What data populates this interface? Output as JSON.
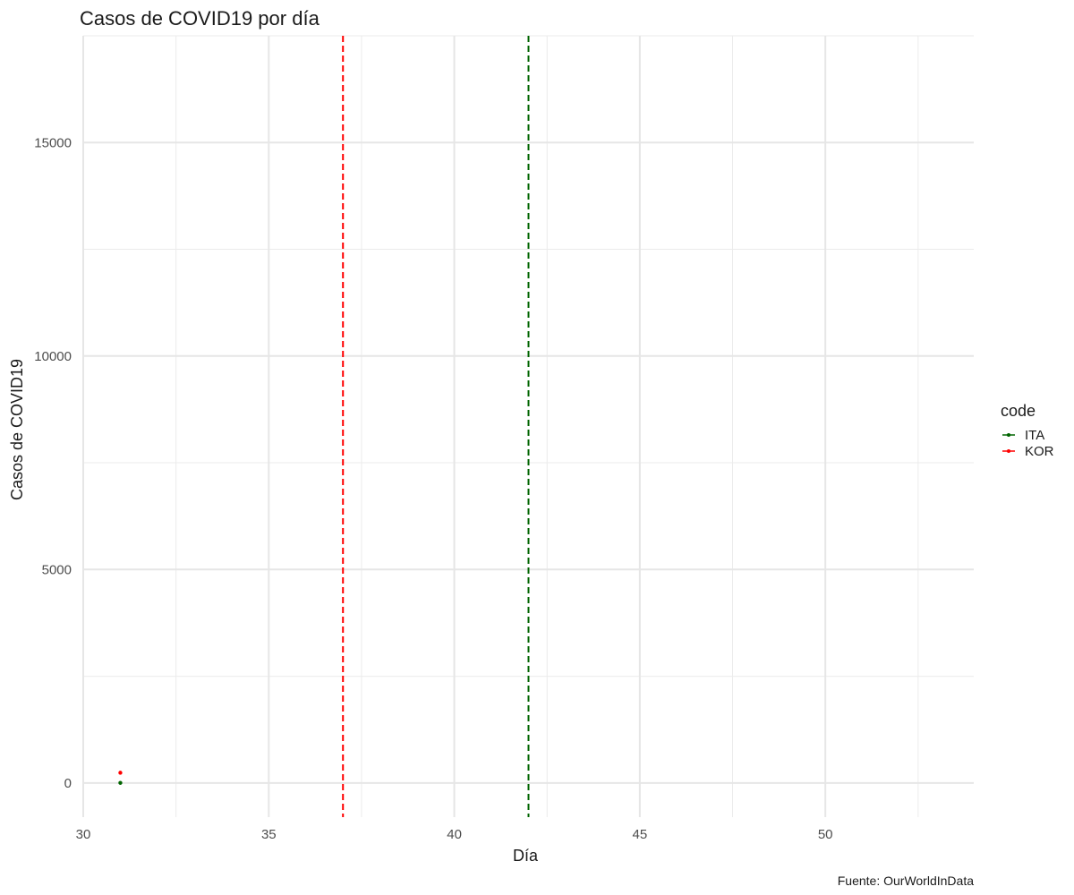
{
  "chart_data": {
    "type": "scatter",
    "title": "Casos de COVID19 por día",
    "xlabel": "Día",
    "ylabel": "Casos de COVID19",
    "caption": "Fuente: OurWorldInData",
    "xlim": [
      30,
      54
    ],
    "ylim": [
      -800,
      17500
    ],
    "x_ticks": [
      30,
      35,
      40,
      45,
      50
    ],
    "y_ticks": [
      0,
      5000,
      10000,
      15000
    ],
    "grid": true,
    "legend": {
      "title": "code",
      "placement": "right"
    },
    "series": [
      {
        "name": "ITA",
        "color": "#006400",
        "points": [
          {
            "x": 31,
            "y": 2
          }
        ],
        "vline_x": 42
      },
      {
        "name": "KOR",
        "color": "#ff0000",
        "points": [
          {
            "x": 31,
            "y": 240
          }
        ],
        "vline_x": 37
      }
    ]
  }
}
